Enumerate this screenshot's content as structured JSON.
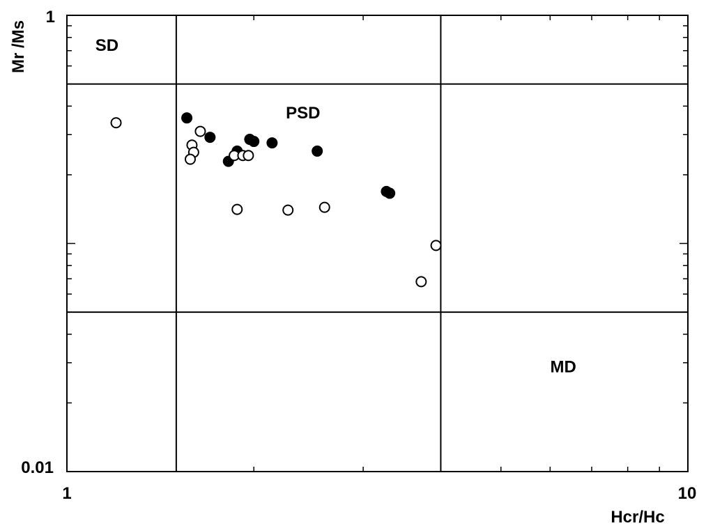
{
  "chart_data": {
    "type": "scatter",
    "title": "",
    "xlabel": "Hcr/Hc",
    "ylabel": "Mr /Ms",
    "xscale": "log",
    "yscale": "log",
    "xlim": [
      1,
      10
    ],
    "ylim": [
      0.01,
      1
    ],
    "x_tick_labels": [
      "1",
      "10"
    ],
    "y_tick_labels": [
      "0.01",
      "1"
    ],
    "grid": false,
    "region_boundaries": {
      "x": [
        1.5,
        4
      ],
      "y": [
        0.5,
        0.05
      ]
    },
    "region_labels": [
      {
        "text": "SD",
        "x": 1.16,
        "y": 0.73
      },
      {
        "text": "PSD",
        "x": 2.4,
        "y": 0.37
      },
      {
        "text": "MD",
        "x": 6.3,
        "y": 0.0285
      }
    ],
    "series": [
      {
        "marker": "filled-circle",
        "points": [
          [
            1.56,
            0.355
          ],
          [
            1.7,
            0.292
          ],
          [
            1.82,
            0.229
          ],
          [
            1.88,
            0.254
          ],
          [
            1.97,
            0.286
          ],
          [
            2.0,
            0.28
          ],
          [
            2.14,
            0.276
          ],
          [
            2.53,
            0.254
          ],
          [
            3.27,
            0.169
          ],
          [
            3.31,
            0.166
          ]
        ]
      },
      {
        "marker": "open-circle",
        "points": [
          [
            1.2,
            0.338
          ],
          [
            1.64,
            0.31
          ],
          [
            1.59,
            0.27
          ],
          [
            1.6,
            0.251
          ],
          [
            1.58,
            0.234
          ],
          [
            1.86,
            0.243
          ],
          [
            1.92,
            0.243
          ],
          [
            1.96,
            0.243
          ],
          [
            1.88,
            0.141
          ],
          [
            2.27,
            0.14
          ],
          [
            2.6,
            0.144
          ],
          [
            3.93,
            0.098
          ],
          [
            3.72,
            0.068
          ]
        ]
      }
    ]
  }
}
